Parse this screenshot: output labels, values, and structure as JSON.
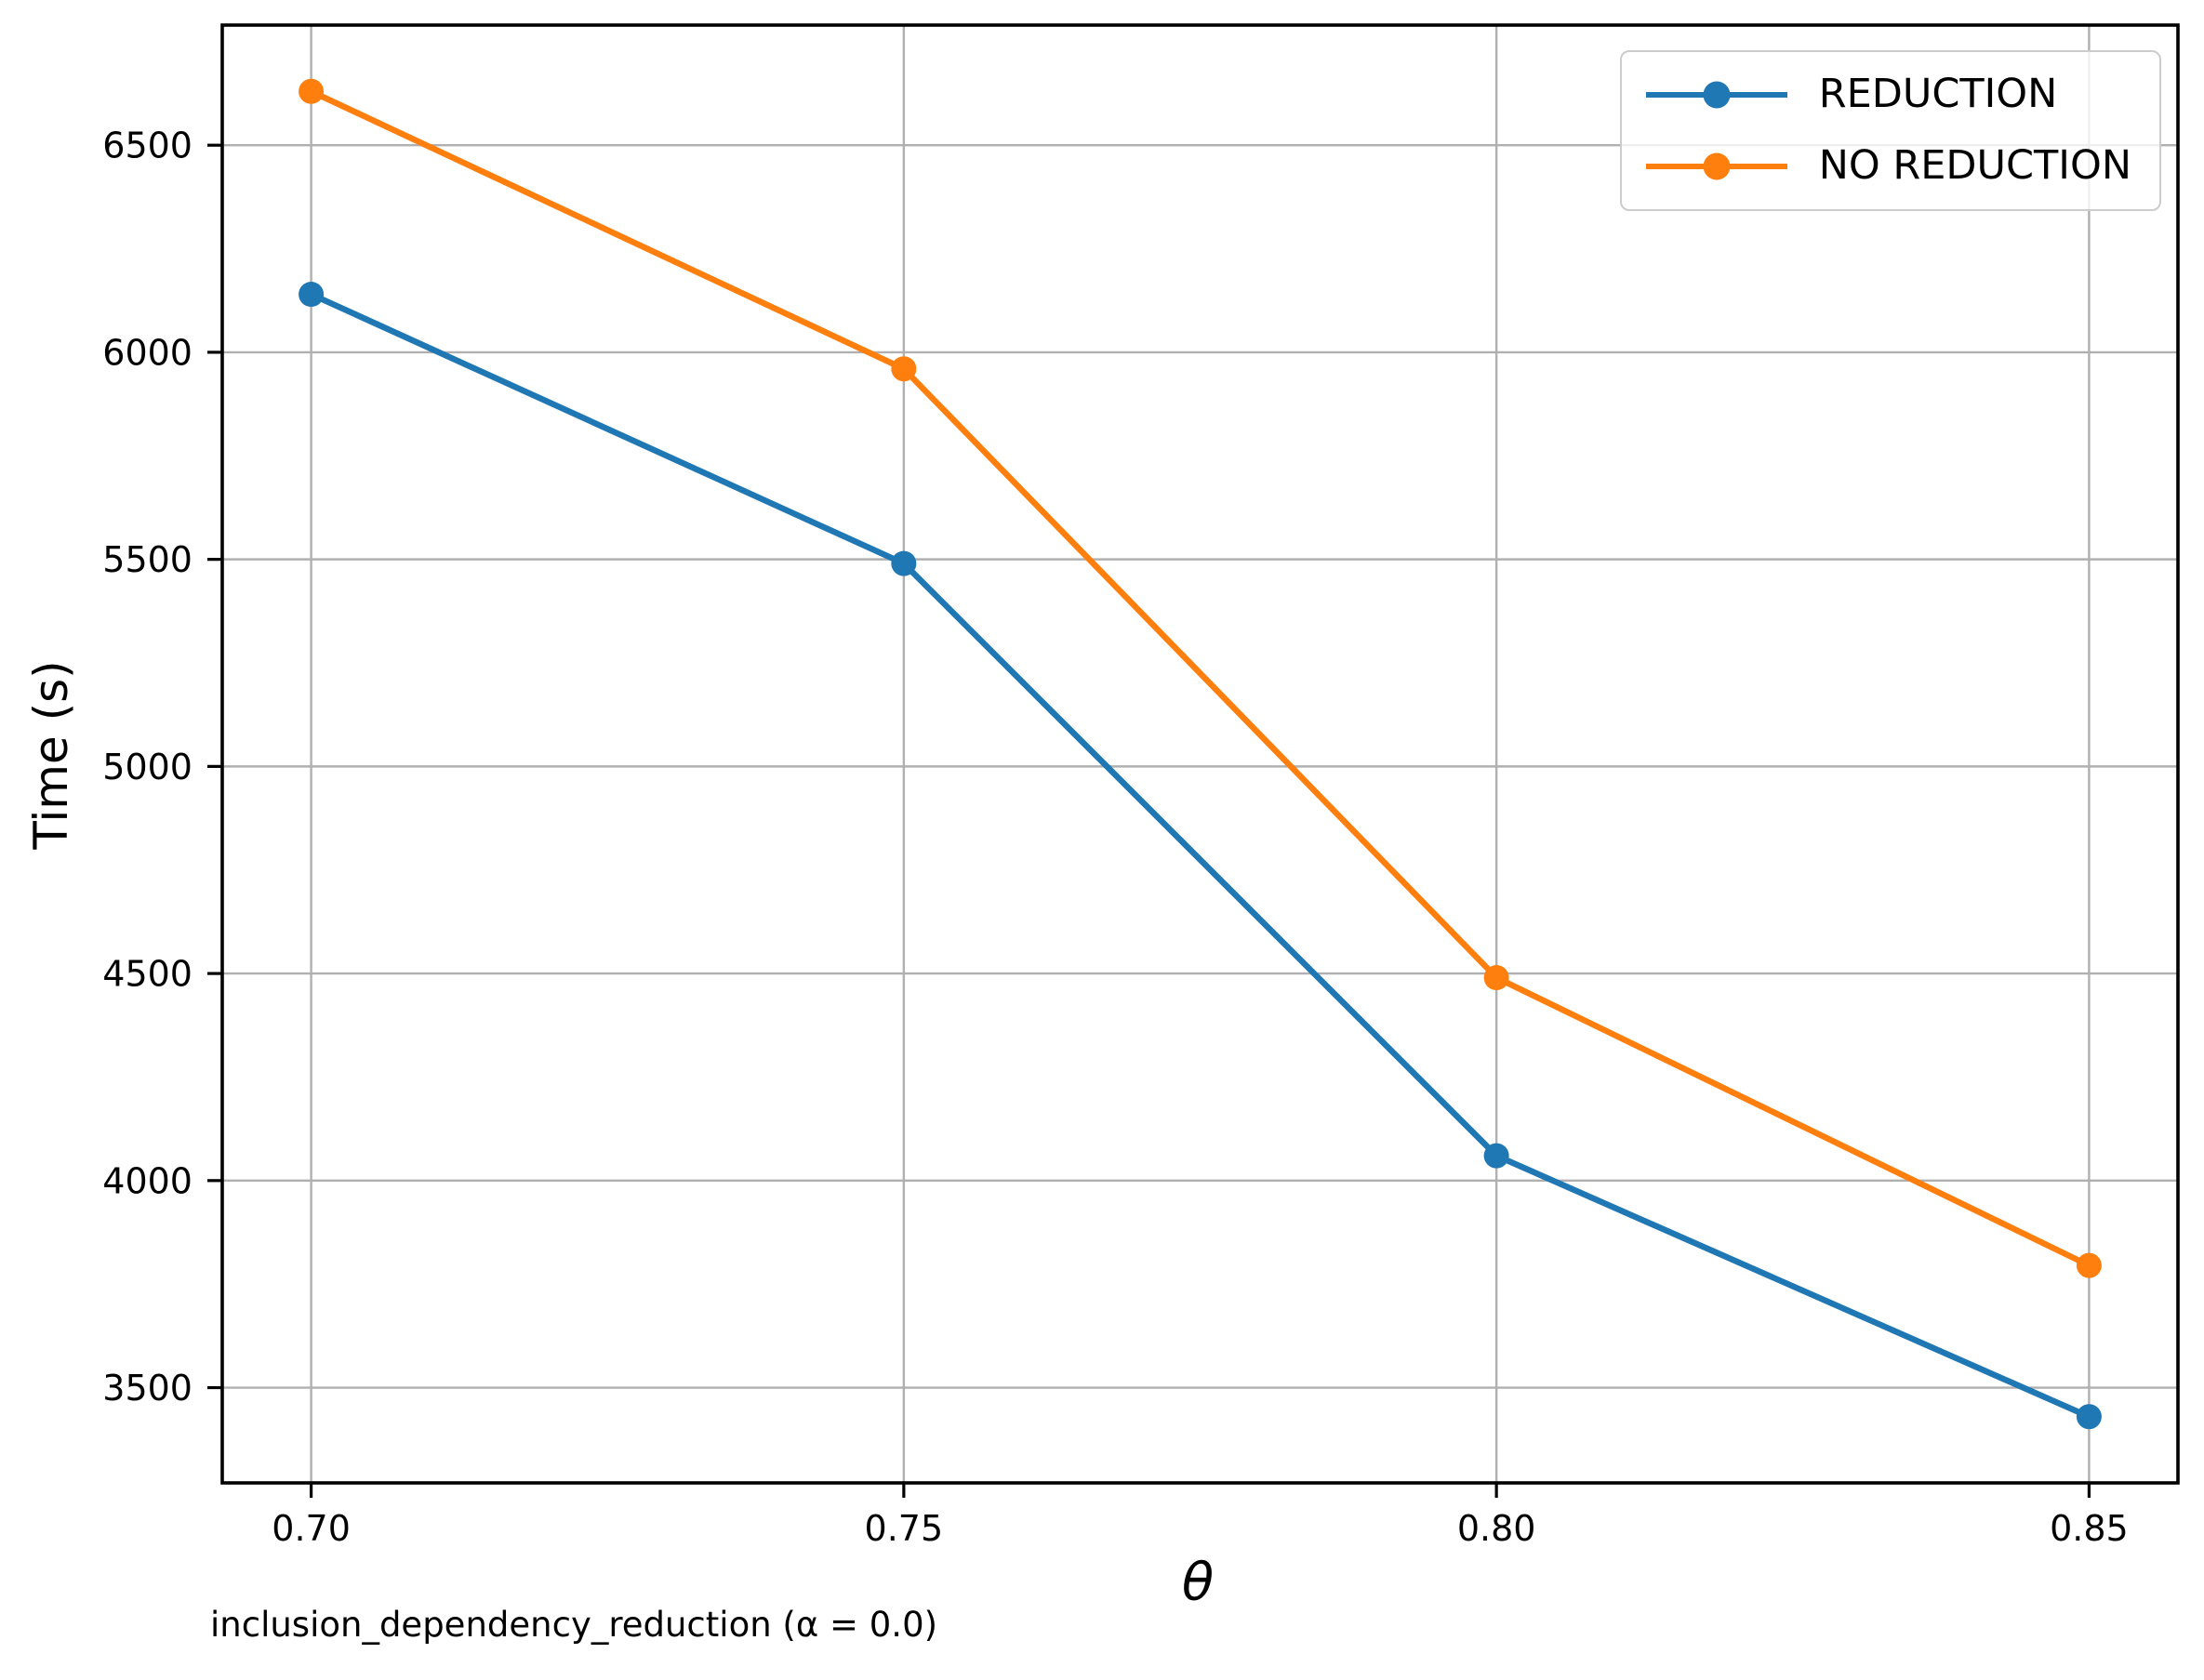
{
  "figure": {
    "background": "#ffffff"
  },
  "chart_data": {
    "type": "line",
    "title": "",
    "xlabel": "θ",
    "ylabel": "Time (s)",
    "caption": "inclusion_dependency_reduction (α = 0.0)",
    "x": [
      0.7,
      0.75,
      0.8,
      0.85
    ],
    "x_tick_labels": [
      "0.70",
      "0.75",
      "0.80",
      "0.85"
    ],
    "y_ticks": [
      3500,
      4000,
      4500,
      5000,
      5500,
      6000,
      6500
    ],
    "xlim": [
      0.6925,
      0.8575
    ],
    "ylim": [
      3270,
      6790
    ],
    "grid": true,
    "grid_color": "#b0b0b0",
    "axis_color": "#000000",
    "tick_label_color": "#000000",
    "legend_position": "upper right",
    "series": [
      {
        "name": "REDUCTION",
        "color": "#1f77b4",
        "marker": "circle",
        "values": [
          6140,
          5490,
          4060,
          3430
        ]
      },
      {
        "name": "NO REDUCTION",
        "color": "#ff7f0e",
        "marker": "circle",
        "values": [
          6630,
          5960,
          4490,
          3795
        ]
      }
    ]
  }
}
